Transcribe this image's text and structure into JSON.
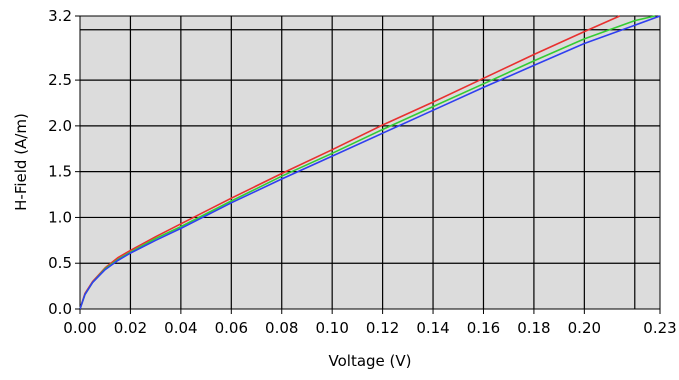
{
  "chart_data": {
    "type": "line",
    "title": "",
    "xlabel": "Voltage (V)",
    "ylabel": "H-Field (A/m)",
    "xlim": [
      0,
      0.23
    ],
    "ylim": [
      0,
      3.2
    ],
    "grid": true,
    "x_ticks": [
      0.0,
      0.02,
      0.04,
      0.06,
      0.08,
      0.1,
      0.12,
      0.14,
      0.16,
      0.18,
      0.2,
      0.23
    ],
    "x_tick_labels": [
      "0.00",
      "0.02",
      "0.04",
      "0.06",
      "0.08",
      "0.10",
      "0.12",
      "0.14",
      "0.16",
      "0.18",
      "0.20",
      "0.23"
    ],
    "y_ticks": [
      0.0,
      0.5,
      1.0,
      1.5,
      2.0,
      2.5,
      3.2
    ],
    "y_tick_labels": [
      "0.0",
      "0.5",
      "1.0",
      "1.5",
      "2.0",
      "2.5",
      "3.2"
    ],
    "extra_gridlines": {
      "x": [
        0.22
      ],
      "y": [
        3.05
      ]
    },
    "series": [
      {
        "color": "#e8302f",
        "x": [
          0.0,
          0.002,
          0.005,
          0.01,
          0.015,
          0.02,
          0.03,
          0.04,
          0.06,
          0.08,
          0.1,
          0.12,
          0.14,
          0.16,
          0.18,
          0.2,
          0.214
        ],
        "y": [
          0.0,
          0.17,
          0.3,
          0.45,
          0.56,
          0.64,
          0.79,
          0.93,
          1.21,
          1.48,
          1.74,
          2.01,
          2.26,
          2.52,
          2.78,
          3.03,
          3.2
        ]
      },
      {
        "color": "#33cc33",
        "x": [
          0.0,
          0.002,
          0.005,
          0.01,
          0.015,
          0.02,
          0.03,
          0.04,
          0.06,
          0.08,
          0.1,
          0.12,
          0.14,
          0.16,
          0.18,
          0.2,
          0.22,
          0.228
        ],
        "y": [
          0.0,
          0.16,
          0.29,
          0.44,
          0.54,
          0.62,
          0.77,
          0.9,
          1.18,
          1.45,
          1.7,
          1.96,
          2.21,
          2.46,
          2.71,
          2.95,
          3.15,
          3.2
        ]
      },
      {
        "color": "#2f3ff0",
        "x": [
          0.0,
          0.002,
          0.005,
          0.01,
          0.015,
          0.02,
          0.03,
          0.04,
          0.06,
          0.08,
          0.1,
          0.12,
          0.14,
          0.16,
          0.18,
          0.2,
          0.22,
          0.23
        ],
        "y": [
          0.0,
          0.16,
          0.29,
          0.43,
          0.53,
          0.61,
          0.75,
          0.88,
          1.16,
          1.42,
          1.67,
          1.92,
          2.17,
          2.42,
          2.66,
          2.9,
          3.1,
          3.2
        ]
      }
    ]
  }
}
